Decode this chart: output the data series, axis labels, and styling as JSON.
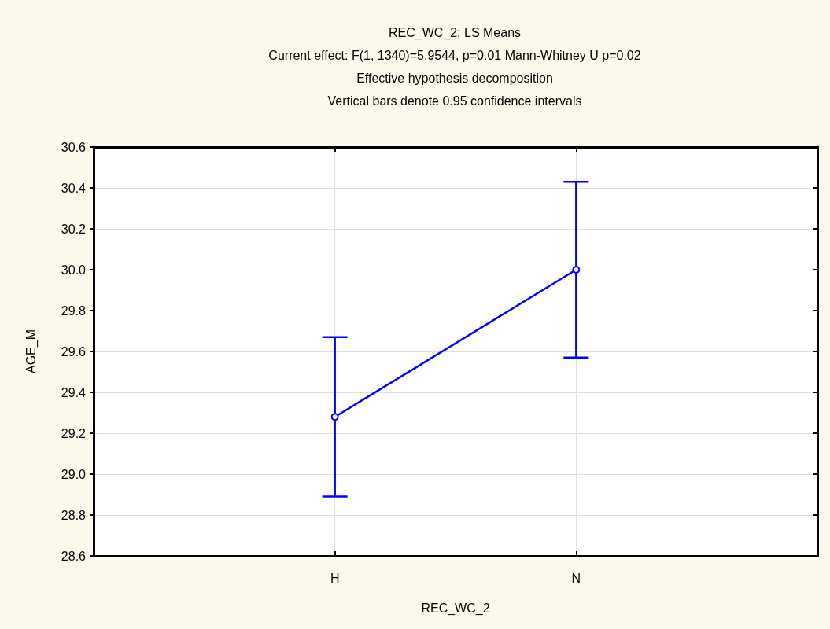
{
  "chart_data": {
    "type": "line",
    "title": "REC_WC_2; LS Means",
    "subtitle": "Current effect: F(1, 1340)=5.9544, p=0.01 Mann-Whitney U p=0.02",
    "annotations": [
      "Effective hypothesis decomposition",
      "Vertical bars denote 0.95 confidence intervals"
    ],
    "xlabel": "REC_WC_2",
    "ylabel": "AGE_M",
    "categories": [
      "H",
      "N"
    ],
    "series": [
      {
        "color": "#0000ff",
        "values": [
          29.28,
          30.0
        ],
        "errors": [
          0.39,
          0.43
        ]
      }
    ],
    "ylim": [
      28.6,
      30.6
    ],
    "yticks": [
      {
        "value": 28.6,
        "label": "28.6"
      },
      28.8,
      {
        "value": 29.0,
        "label": "29.0"
      },
      29.2,
      29.4,
      29.6,
      29.8,
      {
        "value": 30.0,
        "label": "30.0"
      },
      30.2,
      30.4,
      30.6
    ],
    "grid": true,
    "marker": "circle",
    "line_style": "solid"
  }
}
